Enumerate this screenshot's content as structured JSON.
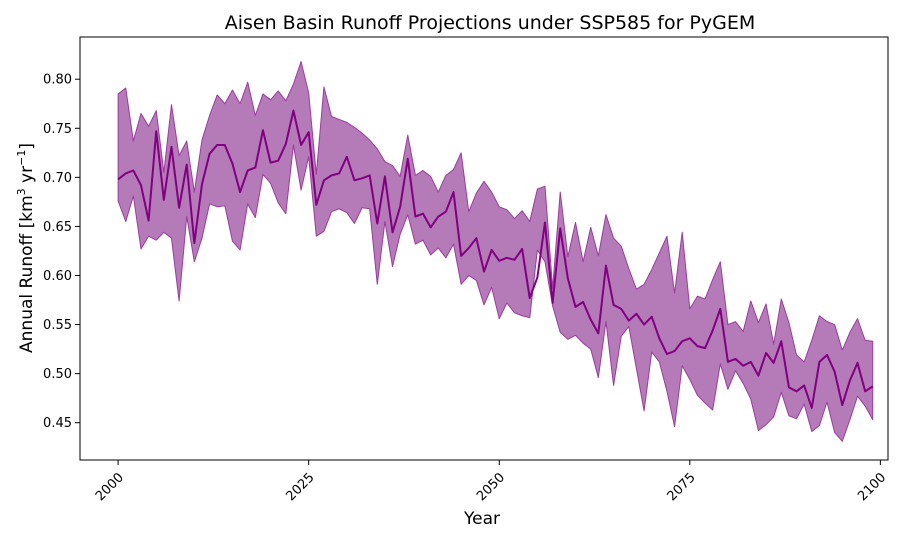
{
  "chart_data": {
    "type": "line",
    "title": "Aisen Basin Runoff Projections under SSP585 for PyGEM",
    "xlabel": "Year",
    "ylabel": "Annual Runoff [km³ yr⁻¹]",
    "ylabel_parts": {
      "main": "Annual Runoff [km",
      "exp1": "3",
      "mid": " yr",
      "exp2": "−1",
      "end": "]"
    },
    "xlim": [
      1995,
      2101
    ],
    "ylim": [
      0.412,
      0.843
    ],
    "xticks": [
      2000,
      2025,
      2050,
      2075,
      2100
    ],
    "yticks": [
      0.45,
      0.5,
      0.55,
      0.6,
      0.65,
      0.7,
      0.75,
      0.8
    ],
    "ytick_labels": [
      "0.45",
      "0.50",
      "0.55",
      "0.60",
      "0.65",
      "0.70",
      "0.75",
      "0.80"
    ],
    "colors": {
      "line": "#800080",
      "band": "#b57ab8",
      "band_edge": "#9a3c9e"
    },
    "grid": false,
    "x": [
      2000,
      2001,
      2002,
      2003,
      2004,
      2005,
      2006,
      2007,
      2008,
      2009,
      2010,
      2011,
      2012,
      2013,
      2014,
      2015,
      2016,
      2017,
      2018,
      2019,
      2020,
      2021,
      2022,
      2023,
      2024,
      2025,
      2026,
      2027,
      2028,
      2029,
      2030,
      2031,
      2032,
      2033,
      2034,
      2035,
      2036,
      2037,
      2038,
      2039,
      2040,
      2041,
      2042,
      2043,
      2044,
      2045,
      2046,
      2047,
      2048,
      2049,
      2050,
      2051,
      2052,
      2053,
      2054,
      2055,
      2056,
      2057,
      2058,
      2059,
      2060,
      2061,
      2062,
      2063,
      2064,
      2065,
      2066,
      2067,
      2068,
      2069,
      2070,
      2071,
      2072,
      2073,
      2074,
      2075,
      2076,
      2077,
      2078,
      2079,
      2080,
      2081,
      2082,
      2083,
      2084,
      2085,
      2086,
      2087,
      2088,
      2089,
      2090,
      2091,
      2092,
      2093,
      2094,
      2095,
      2096,
      2097,
      2098,
      2099
    ],
    "series": [
      {
        "name": "median",
        "values": [
          0.698,
          0.704,
          0.707,
          0.692,
          0.656,
          0.747,
          0.677,
          0.731,
          0.669,
          0.713,
          0.633,
          0.693,
          0.724,
          0.733,
          0.733,
          0.714,
          0.685,
          0.707,
          0.71,
          0.748,
          0.715,
          0.717,
          0.734,
          0.768,
          0.733,
          0.746,
          0.672,
          0.697,
          0.702,
          0.704,
          0.721,
          0.697,
          0.699,
          0.702,
          0.653,
          0.701,
          0.644,
          0.67,
          0.719,
          0.66,
          0.663,
          0.649,
          0.66,
          0.665,
          0.685,
          0.62,
          0.628,
          0.638,
          0.604,
          0.626,
          0.615,
          0.618,
          0.616,
          0.627,
          0.577,
          0.598,
          0.654,
          0.572,
          0.648,
          0.597,
          0.568,
          0.573,
          0.555,
          0.541,
          0.61,
          0.57,
          0.566,
          0.554,
          0.561,
          0.55,
          0.558,
          0.536,
          0.52,
          0.523,
          0.533,
          0.536,
          0.528,
          0.526,
          0.544,
          0.566,
          0.512,
          0.515,
          0.508,
          0.512,
          0.498,
          0.521,
          0.511,
          0.533,
          0.486,
          0.482,
          0.488,
          0.465,
          0.512,
          0.519,
          0.502,
          0.468,
          0.493,
          0.511,
          0.482,
          0.487
        ]
      },
      {
        "name": "upper",
        "values": [
          0.785,
          0.791,
          0.737,
          0.765,
          0.752,
          0.768,
          0.705,
          0.774,
          0.722,
          0.737,
          0.685,
          0.738,
          0.763,
          0.784,
          0.775,
          0.789,
          0.775,
          0.797,
          0.763,
          0.785,
          0.779,
          0.788,
          0.778,
          0.795,
          0.818,
          0.786,
          0.703,
          0.792,
          0.762,
          0.759,
          0.756,
          0.751,
          0.745,
          0.738,
          0.729,
          0.716,
          0.712,
          0.701,
          0.743,
          0.702,
          0.707,
          0.701,
          0.685,
          0.702,
          0.708,
          0.725,
          0.665,
          0.684,
          0.696,
          0.685,
          0.67,
          0.667,
          0.658,
          0.666,
          0.655,
          0.688,
          0.691,
          0.587,
          0.685,
          0.619,
          0.654,
          0.614,
          0.649,
          0.62,
          0.662,
          0.638,
          0.63,
          0.607,
          0.586,
          0.591,
          0.606,
          0.623,
          0.64,
          0.582,
          0.644,
          0.566,
          0.579,
          0.576,
          0.596,
          0.614,
          0.55,
          0.553,
          0.543,
          0.574,
          0.552,
          0.571,
          0.53,
          0.576,
          0.552,
          0.519,
          0.512,
          0.534,
          0.559,
          0.553,
          0.55,
          0.524,
          0.542,
          0.556,
          0.534,
          0.533
        ]
      },
      {
        "name": "lower",
        "values": [
          0.676,
          0.655,
          0.681,
          0.627,
          0.64,
          0.636,
          0.644,
          0.638,
          0.574,
          0.66,
          0.614,
          0.638,
          0.673,
          0.67,
          0.671,
          0.635,
          0.626,
          0.673,
          0.659,
          0.703,
          0.694,
          0.674,
          0.663,
          0.733,
          0.687,
          0.721,
          0.64,
          0.645,
          0.665,
          0.668,
          0.664,
          0.653,
          0.669,
          0.668,
          0.591,
          0.655,
          0.609,
          0.642,
          0.662,
          0.632,
          0.636,
          0.621,
          0.628,
          0.618,
          0.632,
          0.591,
          0.6,
          0.595,
          0.57,
          0.588,
          0.556,
          0.572,
          0.562,
          0.559,
          0.557,
          0.626,
          0.614,
          0.569,
          0.542,
          0.535,
          0.539,
          0.531,
          0.525,
          0.496,
          0.553,
          0.488,
          0.538,
          0.548,
          0.505,
          0.462,
          0.522,
          0.512,
          0.482,
          0.446,
          0.508,
          0.494,
          0.478,
          0.47,
          0.463,
          0.51,
          0.484,
          0.503,
          0.49,
          0.474,
          0.442,
          0.448,
          0.456,
          0.481,
          0.457,
          0.454,
          0.469,
          0.441,
          0.447,
          0.471,
          0.44,
          0.431,
          0.453,
          0.477,
          0.467,
          0.453
        ]
      }
    ]
  }
}
